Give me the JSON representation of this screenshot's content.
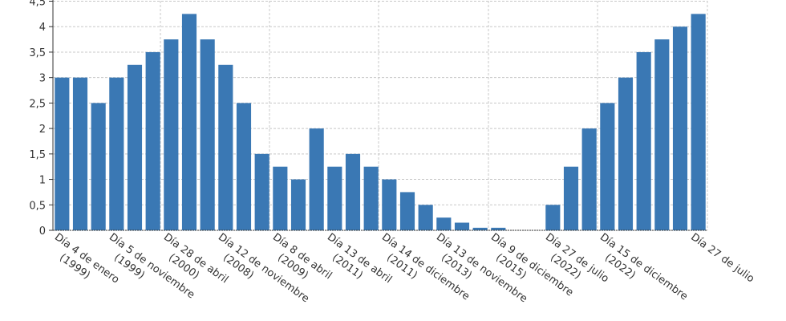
{
  "chart_data": {
    "type": "bar",
    "color": "#3a78b4",
    "grid": true,
    "categories": [
      "Día 4 de enero\n(1999)",
      null,
      null,
      "Día 5 de noviembre\n(1999)",
      null,
      null,
      "Día 28 de abril\n(2000)",
      null,
      null,
      "Día 12 de noviembre\n(2008)",
      null,
      null,
      "Día 8 de abril\n(2009)",
      null,
      null,
      "Día 13 de abril\n(2011)",
      null,
      null,
      "Día 14 de diciembre\n(2011)",
      null,
      null,
      "Día 13 de noviembre\n(2013)",
      null,
      null,
      "Día 9 de diciembre\n(2015)",
      null,
      null,
      "Día 27 de julio\n(2022)",
      null,
      null,
      "Día 15 de diciembre\n(2022)",
      null,
      null,
      null,
      null,
      "Día 27 de julio"
    ],
    "values": [
      3,
      3,
      2.5,
      3,
      3.25,
      3.5,
      3.75,
      4.25,
      3.75,
      3.25,
      2.5,
      1.5,
      1.25,
      1,
      2,
      1.25,
      1.5,
      1.25,
      1,
      0.75,
      0.5,
      0.25,
      0.15,
      0.05,
      0.05,
      0,
      0,
      0.5,
      1.25,
      2,
      2.5,
      3,
      3.5,
      3.75,
      4,
      4.25
    ],
    "ylim": [
      0,
      4.5
    ],
    "yticks": [
      0,
      {
        "value": 0.5,
        "label": "0,5"
      },
      1,
      {
        "value": 1.5,
        "label": "1,5"
      },
      2,
      {
        "value": 2.5,
        "label": "2,5"
      },
      3,
      {
        "value": 3.5,
        "label": "3,5"
      },
      4,
      {
        "value": 4.5,
        "label": "4,5"
      }
    ]
  }
}
